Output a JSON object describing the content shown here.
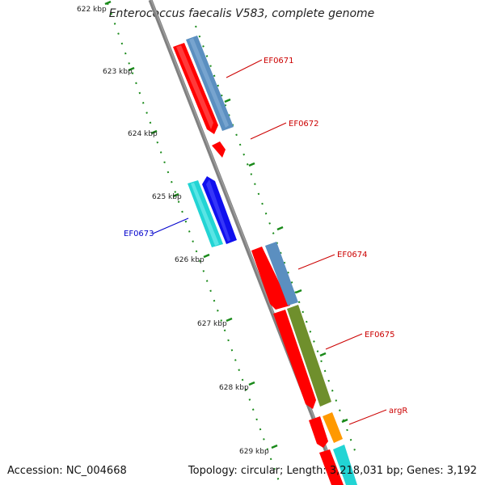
{
  "title": "Enterococcus faecalis V583, complete genome",
  "accession": "Accession: NC_004668",
  "topology": "Topology: circular; Length: 3,218,031 bp; Genes: 3,192",
  "ruler_ticks": [
    "622 kbp",
    "623 kbp",
    "624 kbp",
    "625 kbp",
    "626 kbp",
    "627 kbp",
    "628 kbp",
    "629 kbp"
  ],
  "genes": [
    {
      "name": "EF0671",
      "label_color": "#cc0000"
    },
    {
      "name": "EF0672",
      "label_color": "#cc0000"
    },
    {
      "name": "EF0673",
      "label_color": "#0000cc"
    },
    {
      "name": "EF0674",
      "label_color": "#cc0000"
    },
    {
      "name": "EF0675",
      "label_color": "#cc0000"
    },
    {
      "name": "argR",
      "label_color": "#cc0000"
    }
  ],
  "colors": {
    "backbone": "#808080",
    "cds_red": "#ff0000",
    "steelblue": "#5b8fc0",
    "blue": "#1010ee",
    "cyan": "#22d4d4",
    "olive": "#6f8f2c",
    "orange": "#ff9900",
    "tick_green": "#1a8a1a"
  }
}
